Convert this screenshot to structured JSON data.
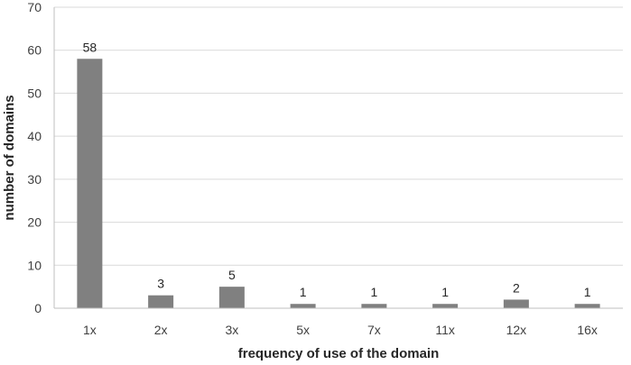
{
  "chart_data": {
    "type": "bar",
    "title": "",
    "xlabel": "frequency of use of the domain",
    "ylabel": "number  of domains",
    "categories": [
      "1x",
      "2x",
      "3x",
      "5x",
      "7x",
      "11x",
      "12x",
      "16x"
    ],
    "values": [
      58,
      3,
      5,
      1,
      1,
      1,
      2,
      1
    ],
    "data_labels": [
      "58",
      "3",
      "5",
      "1",
      "1",
      "1",
      "2",
      "1"
    ],
    "ylim": [
      0,
      70
    ],
    "yticks": [
      0,
      10,
      20,
      30,
      40,
      50,
      60,
      70
    ],
    "ytick_labels": [
      "0",
      "10",
      "20",
      "30",
      "40",
      "50",
      "60",
      "70"
    ],
    "grid": true,
    "legend": "none",
    "bar_color": "#808080"
  }
}
